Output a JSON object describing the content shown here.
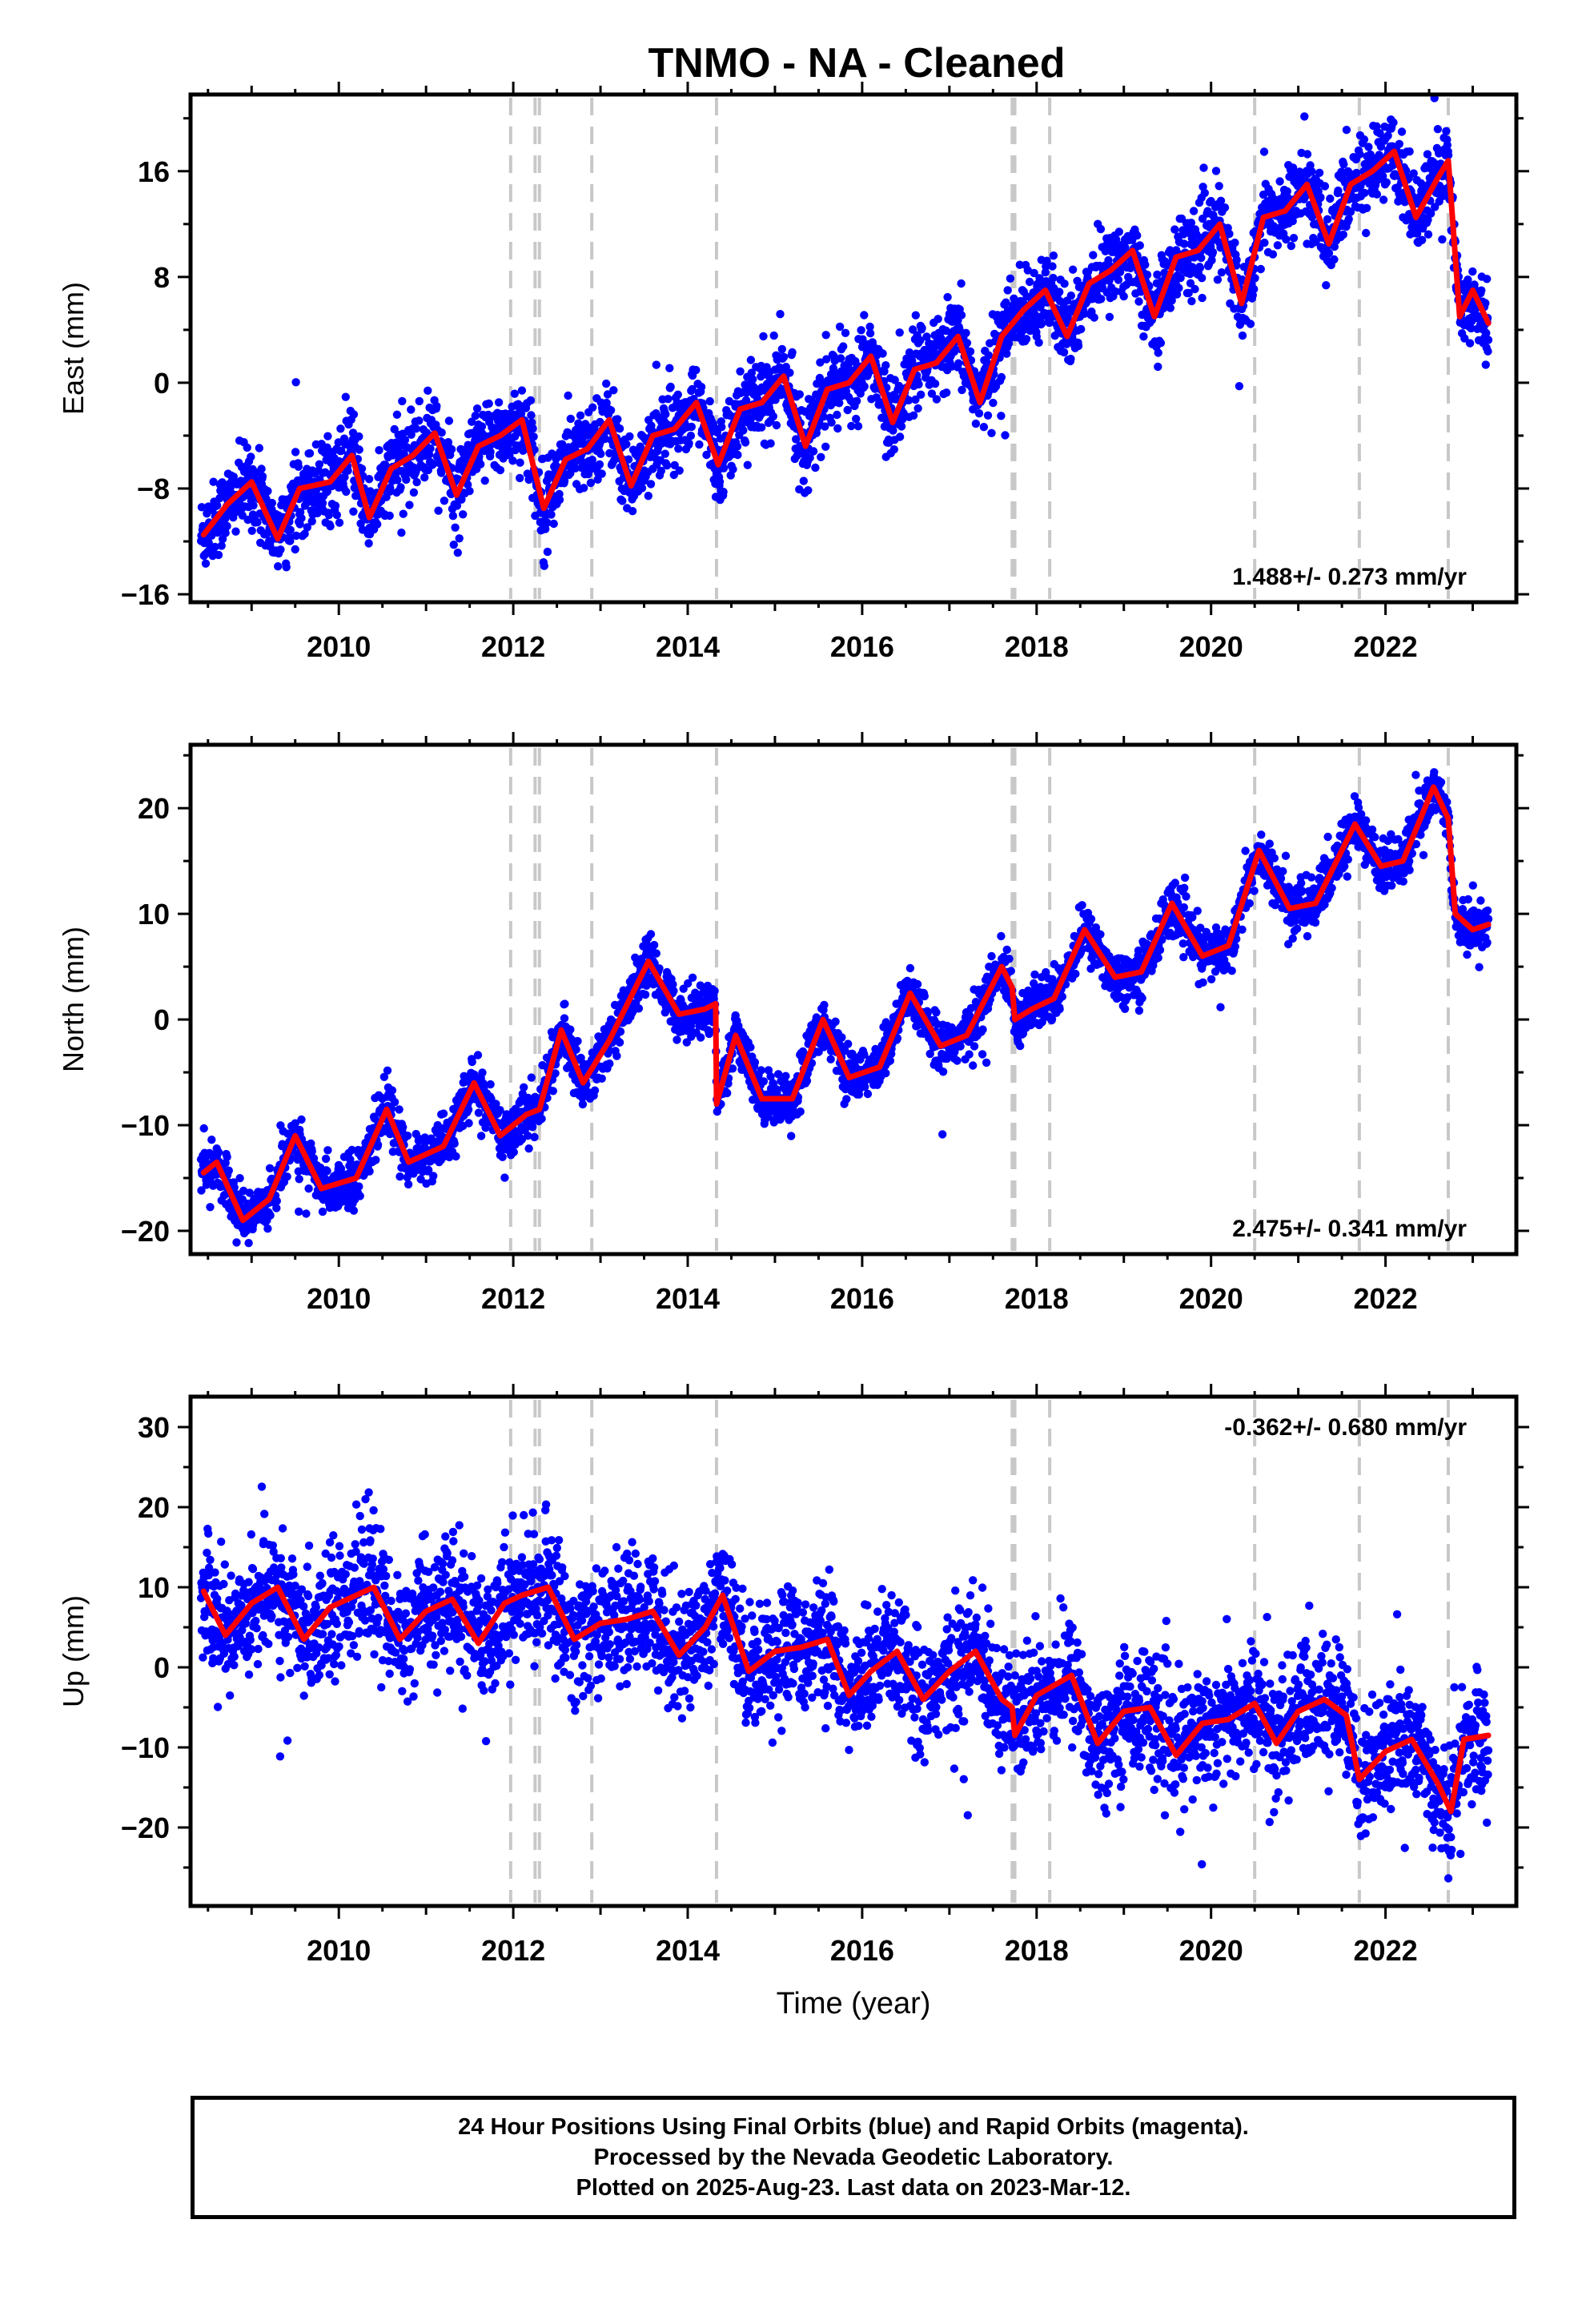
{
  "figure": {
    "title": "TNMO  - NA - Cleaned"
  },
  "chart_data": [
    {
      "type": "scatter",
      "name": "east",
      "ylabel": "East (mm)",
      "xlabel": "",
      "xlim": [
        2008.3,
        2023.5
      ],
      "ylim": [
        -16.6,
        21.8
      ],
      "yticks": [
        -16,
        -8,
        0,
        8,
        16
      ],
      "xticks": [
        2010,
        2012,
        2014,
        2016,
        2018,
        2020,
        2022
      ],
      "xtick_labels": [
        "2010",
        "2012",
        "2014",
        "2016",
        "2018",
        "2020",
        "2022"
      ],
      "rate_label": "1.488+/- 0.273 mm/yr",
      "rate_position": "bottom-right",
      "x": [
        2008.45,
        2008.72,
        2009.0,
        2009.3,
        2009.55,
        2009.9,
        2010.15,
        2010.35,
        2010.6,
        2010.85,
        2011.1,
        2011.35,
        2011.6,
        2011.85,
        2012.1,
        2012.35,
        2012.6,
        2012.85,
        2013.1,
        2013.35,
        2013.6,
        2013.85,
        2014.1,
        2014.35,
        2014.6,
        2014.85,
        2015.1,
        2015.35,
        2015.6,
        2015.85,
        2016.1,
        2016.35,
        2016.6,
        2016.85,
        2017.1,
        2017.35,
        2017.6,
        2017.85,
        2018.1,
        2018.35,
        2018.6,
        2018.85,
        2019.1,
        2019.35,
        2019.6,
        2019.85,
        2020.1,
        2020.35,
        2020.6,
        2020.85,
        2021.1,
        2021.35,
        2021.6,
        2021.85,
        2022.1,
        2022.35,
        2022.6,
        2022.72,
        2022.85,
        2023.0,
        2023.18
      ],
      "y": [
        -11.5,
        -9.2,
        -7.5,
        -11.8,
        -8.0,
        -7.5,
        -5.5,
        -10.2,
        -6.5,
        -5.5,
        -3.8,
        -8.5,
        -4.8,
        -4.0,
        -2.8,
        -9.5,
        -5.8,
        -5.0,
        -2.8,
        -7.8,
        -4.0,
        -3.5,
        -1.5,
        -6.2,
        -2.0,
        -1.5,
        0.5,
        -4.8,
        -0.5,
        0.0,
        2.0,
        -3.0,
        1.0,
        1.5,
        3.5,
        -1.5,
        3.5,
        5.5,
        7.0,
        3.5,
        7.5,
        8.5,
        10.0,
        5.0,
        9.5,
        10.0,
        12.0,
        6.0,
        12.5,
        13.0,
        15.0,
        10.5,
        15.0,
        16.0,
        17.5,
        12.5,
        15.5,
        16.8,
        5.0,
        7.0,
        4.5
      ],
      "colors": {
        "points": "#0000ff",
        "model": "#ff0000",
        "event_lines": "#c8c8c8"
      }
    },
    {
      "type": "scatter",
      "name": "north",
      "ylabel": "North (mm)",
      "xlabel": "",
      "xlim": [
        2008.3,
        2023.5
      ],
      "ylim": [
        -22.2,
        26.0
      ],
      "yticks": [
        -20,
        -10,
        0,
        10,
        20
      ],
      "xticks": [
        2010,
        2012,
        2014,
        2016,
        2018,
        2020,
        2022
      ],
      "xtick_labels": [
        "2010",
        "2012",
        "2014",
        "2016",
        "2018",
        "2020",
        "2022"
      ],
      "rate_label": "2.475+/- 0.341 mm/yr",
      "rate_position": "bottom-right",
      "x": [
        2008.45,
        2008.6,
        2008.9,
        2009.2,
        2009.5,
        2009.8,
        2010.2,
        2010.55,
        2010.8,
        2011.2,
        2011.55,
        2011.85,
        2012.15,
        2012.3,
        2012.55,
        2012.8,
        2013.1,
        2013.55,
        2013.9,
        2014.2,
        2014.32,
        2014.33,
        2014.55,
        2014.85,
        2015.2,
        2015.55,
        2015.85,
        2016.2,
        2016.55,
        2016.9,
        2017.2,
        2017.6,
        2017.72,
        2017.75,
        2017.95,
        2018.2,
        2018.55,
        2018.9,
        2019.2,
        2019.55,
        2019.9,
        2020.2,
        2020.55,
        2020.9,
        2021.2,
        2021.65,
        2021.95,
        2022.2,
        2022.55,
        2022.72,
        2022.8,
        2023.0,
        2023.18
      ],
      "y": [
        -14.5,
        -13.5,
        -19.0,
        -17.0,
        -11.0,
        -16.0,
        -15.0,
        -8.5,
        -13.5,
        -12.0,
        -6.0,
        -11.0,
        -9.0,
        -8.5,
        -1.0,
        -6.0,
        -2.0,
        5.5,
        0.5,
        1.0,
        1.5,
        -8.0,
        -1.5,
        -7.5,
        -7.5,
        0.0,
        -5.5,
        -4.5,
        2.5,
        -2.5,
        -1.5,
        5.0,
        3.0,
        0.0,
        1.0,
        2.0,
        8.5,
        4.0,
        4.5,
        11.0,
        6.0,
        7.0,
        16.0,
        10.5,
        11.0,
        18.5,
        14.5,
        15.0,
        22.0,
        19.0,
        10.0,
        8.5,
        9.0
      ],
      "colors": {
        "points": "#0000ff",
        "model": "#ff0000",
        "event_lines": "#c8c8c8"
      }
    },
    {
      "type": "scatter",
      "name": "up",
      "ylabel": "Up (mm)",
      "xlabel": "Time (year)",
      "xlim": [
        2008.3,
        2023.5
      ],
      "ylim": [
        -29.8,
        33.8
      ],
      "yticks": [
        -20,
        -10,
        0,
        10,
        20,
        30
      ],
      "xticks": [
        2010,
        2012,
        2014,
        2016,
        2018,
        2020,
        2022
      ],
      "xtick_labels": [
        "2010",
        "2012",
        "2014",
        "2016",
        "2018",
        "2020",
        "2022"
      ],
      "rate_label": "-0.362+/- 0.680 mm/yr",
      "rate_position": "top-right",
      "x": [
        2008.45,
        2008.7,
        2009.0,
        2009.3,
        2009.6,
        2009.9,
        2010.2,
        2010.4,
        2010.7,
        2011.0,
        2011.3,
        2011.6,
        2011.9,
        2012.1,
        2012.4,
        2012.7,
        2013.0,
        2013.3,
        2013.6,
        2013.9,
        2014.2,
        2014.4,
        2014.7,
        2015.0,
        2015.3,
        2015.6,
        2015.85,
        2016.1,
        2016.4,
        2016.7,
        2017.0,
        2017.3,
        2017.6,
        2017.72,
        2017.75,
        2018.0,
        2018.4,
        2018.7,
        2019.0,
        2019.3,
        2019.6,
        2019.9,
        2020.2,
        2020.5,
        2020.75,
        2021.0,
        2021.3,
        2021.55,
        2021.7,
        2022.0,
        2022.3,
        2022.6,
        2022.75,
        2022.9,
        2023.18
      ],
      "y": [
        9.5,
        4.0,
        8.0,
        10.0,
        3.5,
        7.5,
        9.0,
        10.0,
        3.5,
        7.0,
        8.5,
        3.0,
        8.0,
        9.0,
        10.0,
        3.5,
        5.5,
        6.0,
        7.0,
        1.5,
        5.0,
        9.0,
        -0.5,
        2.0,
        2.5,
        3.5,
        -3.5,
        -0.5,
        2.0,
        -4.0,
        -0.5,
        2.0,
        -4.0,
        -5.0,
        -8.5,
        -3.5,
        -1.0,
        -9.5,
        -5.5,
        -5.0,
        -11.0,
        -7.0,
        -6.5,
        -4.5,
        -9.5,
        -5.5,
        -4.0,
        -6.0,
        -14.0,
        -10.5,
        -9.0,
        -14.5,
        -18.0,
        -9.0,
        -8.5
      ],
      "colors": {
        "points": "#0000ff",
        "model": "#ff0000",
        "event_lines": "#c8c8c8"
      }
    }
  ],
  "event_lines_x": [
    2011.97,
    2012.25,
    2012.3,
    2012.9,
    2014.33,
    2017.72,
    2017.75,
    2018.15,
    2020.5,
    2021.7,
    2022.72
  ],
  "footer": {
    "line1": "24 Hour Positions Using Final Orbits (blue) and Rapid Orbits (magenta).",
    "line2": "Processed by the Nevada Geodetic Laboratory.",
    "line3": "Plotted on 2025-Aug-23. Last data on 2023-Mar-12."
  }
}
